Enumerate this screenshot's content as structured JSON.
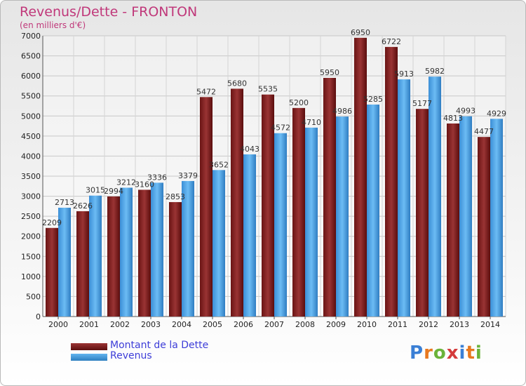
{
  "header": {
    "title": "Revenus/Dette - FRONTON",
    "subtitle": "(en milliers d'€)"
  },
  "legend": {
    "debt_label": "Montant de la Dette",
    "revenue_label": "Revenus"
  },
  "brand": {
    "logo_text": "Proxiti",
    "logo_colors": [
      "#3a7fd5",
      "#e8781e",
      "#6bb33a",
      "#d43b3b",
      "#3a7fd5",
      "#e8781e",
      "#6bb33a"
    ]
  },
  "colors": {
    "debt": "#7d1f1f",
    "revenue": "#4aa0e2"
  },
  "chart_data": {
    "type": "bar",
    "categories": [
      "2000",
      "2001",
      "2002",
      "2003",
      "2004",
      "2005",
      "2006",
      "2007",
      "2008",
      "2009",
      "2010",
      "2011",
      "2012",
      "2013",
      "2014"
    ],
    "series": [
      {
        "name": "Montant de la Dette",
        "values": [
          2209,
          2626,
          2994,
          3160,
          2853,
          5472,
          5680,
          5535,
          5200,
          5950,
          6950,
          6722,
          5177,
          4813,
          4477
        ]
      },
      {
        "name": "Revenus",
        "values": [
          2713,
          3015,
          3212,
          3336,
          3379,
          3652,
          4043,
          4572,
          4710,
          4986,
          5285,
          5913,
          5982,
          4993,
          4929
        ]
      }
    ],
    "data_labels": [
      [
        "2209",
        "2626",
        "2994",
        "3160",
        "2853",
        "5472",
        "5680",
        "5535",
        "5200",
        "5950",
        "6950",
        "6722",
        "5177",
        "4813",
        "4477"
      ],
      [
        "2713",
        "3015",
        "3212",
        "3336",
        "3379",
        "3652",
        "4043",
        "4572",
        "4710",
        "4986",
        "5285",
        "5913",
        "5982",
        "4993",
        "4929"
      ]
    ],
    "y_ticks": [
      "0",
      "500",
      "1000",
      "1500",
      "2000",
      "2500",
      "3000",
      "3500",
      "4000",
      "4500",
      "5000",
      "5500",
      "6000",
      "6500",
      "7000"
    ],
    "ylim": [
      0,
      7000
    ],
    "title": "Revenus/Dette - FRONTON",
    "xlabel": "",
    "ylabel": "(en milliers d'€)",
    "grid": true,
    "legend_position": "bottom-left"
  }
}
